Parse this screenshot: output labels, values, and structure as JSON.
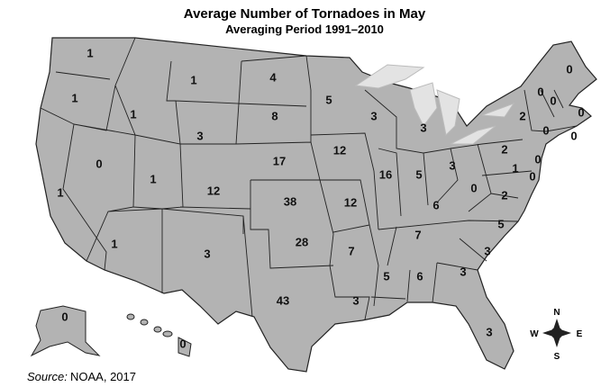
{
  "title": "Average Number of Tornadoes in May",
  "subtitle": "Averaging Period 1991–2010",
  "source": {
    "label": "Source:",
    "text": "NOAA, 2017"
  },
  "compass": {
    "n": "N",
    "e": "E",
    "s": "S",
    "w": "W"
  },
  "map": {
    "values": [
      1,
      1,
      1,
      0,
      1,
      1,
      3,
      1,
      1,
      12,
      3,
      4,
      8,
      17,
      38,
      28,
      43,
      5,
      12,
      12,
      7,
      3,
      3,
      16,
      5,
      3,
      5,
      3,
      6,
      7,
      6,
      3,
      3,
      3,
      5,
      2,
      0,
      2,
      2,
      1,
      0,
      0,
      0,
      0,
      0,
      0,
      0,
      0,
      0,
      0
    ]
  }
}
